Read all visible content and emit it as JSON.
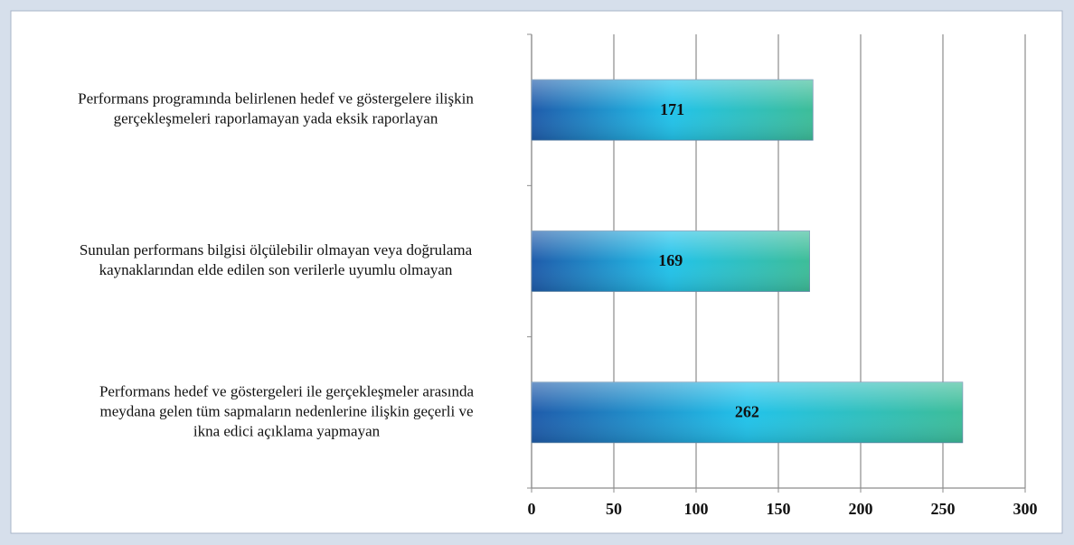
{
  "chart_data": {
    "type": "bar",
    "orientation": "horizontal",
    "categories": [
      [
        "Performans programında belirlenen hedef ve göstergelere ilişkin",
        "gerçekleşmeleri raporlamayan yada eksik raporlayan"
      ],
      [
        "Sunulan performans bilgisi ölçülebilir olmayan veya doğrulama",
        "kaynaklarından elde edilen son verilerle uyumlu olmayan"
      ],
      [
        "Performans hedef ve göstergeleri ile gerçekleşmeler arasında",
        "meydana gelen tüm sapmaların nedenlerine ilişkin geçerli ve",
        "ikna edici açıklama yapmayan"
      ]
    ],
    "values": [
      171,
      169,
      262
    ],
    "color": [
      "#1f5cab",
      "#22c3ea",
      "#3dbd98"
    ],
    "xlim": [
      0,
      300
    ],
    "xticks": [
      0,
      50,
      100,
      150,
      200,
      250,
      300
    ],
    "grid": true
  }
}
